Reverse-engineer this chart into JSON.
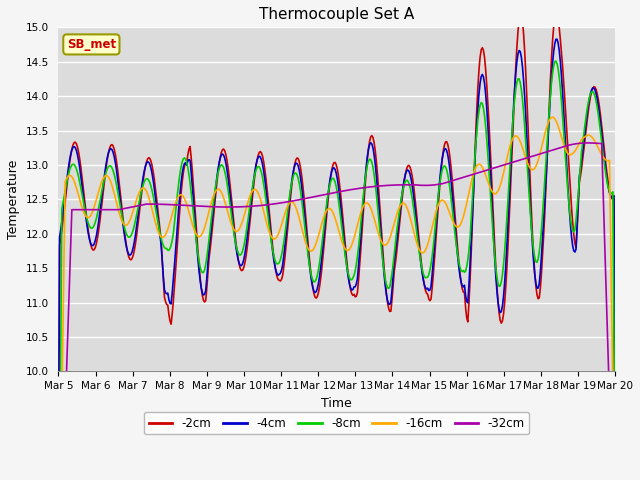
{
  "title": "Thermocouple Set A",
  "xlabel": "Time",
  "ylabel": "Temperature",
  "ylim": [
    10.0,
    15.0
  ],
  "yticks": [
    10.0,
    10.5,
    11.0,
    11.5,
    12.0,
    12.5,
    13.0,
    13.5,
    14.0,
    14.5,
    15.0
  ],
  "date_labels": [
    "Mar 5",
    "Mar 6",
    "Mar 7",
    "Mar 8",
    "Mar 9",
    "Mar 10",
    "Mar 11",
    "Mar 12",
    "Mar 13",
    "Mar 14",
    "Mar 15",
    "Mar 16",
    "Mar 17",
    "Mar 18",
    "Mar 19",
    "Mar 20"
  ],
  "series_labels": [
    "-2cm",
    "-4cm",
    "-8cm",
    "-16cm",
    "-32cm"
  ],
  "series_colors": [
    "#cc0000",
    "#0000cc",
    "#00cc00",
    "#ffaa00",
    "#aa00aa"
  ],
  "annotation_text": "SB_met",
  "annotation_color": "#cc0000",
  "annotation_bg": "#ffffcc",
  "annotation_edge": "#999900",
  "plot_bg": "#dcdcdc",
  "fig_bg": "#f5f5f5",
  "linewidth": 1.2,
  "n_points": 500
}
